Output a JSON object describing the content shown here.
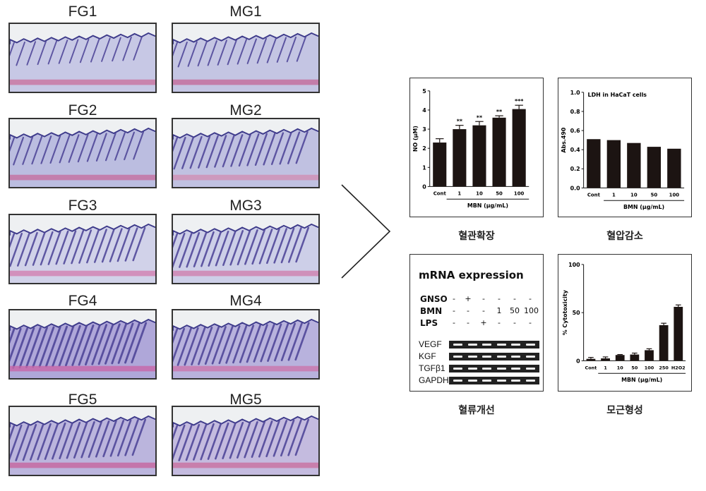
{
  "histology": {
    "panels": [
      {
        "label": "FG1",
        "col": 0,
        "row": 0,
        "density": 0.35,
        "color": "#b9bbe0",
        "muscle": "#c9739f"
      },
      {
        "label": "MG1",
        "col": 1,
        "row": 0,
        "density": 0.4,
        "color": "#b5b7de",
        "muscle": "#c46a9a"
      },
      {
        "label": "FG2",
        "col": 0,
        "row": 1,
        "density": 0.5,
        "color": "#a9acd9",
        "muscle": "#c56fa0"
      },
      {
        "label": "MG2",
        "col": 1,
        "row": 1,
        "density": 0.65,
        "color": "#b0b2db",
        "muscle": "#cf8fb4"
      },
      {
        "label": "FG3",
        "col": 0,
        "row": 2,
        "density": 0.7,
        "color": "#c7c8e6",
        "muscle": "#d27fb0"
      },
      {
        "label": "MG3",
        "col": 1,
        "row": 2,
        "density": 0.75,
        "color": "#c2c4e4",
        "muscle": "#cf7fae"
      },
      {
        "label": "FG4",
        "col": 0,
        "row": 3,
        "density": 0.95,
        "color": "#9a8fd0",
        "muscle": "#c866a8"
      },
      {
        "label": "MG4",
        "col": 1,
        "row": 3,
        "density": 0.85,
        "color": "#a69ed6",
        "muscle": "#cb76ac"
      },
      {
        "label": "FG5",
        "col": 0,
        "row": 4,
        "density": 0.8,
        "color": "#a9a1d6",
        "muscle": "#c7659f"
      },
      {
        "label": "MG5",
        "col": 1,
        "row": 4,
        "density": 0.8,
        "color": "#b6a9d8",
        "muscle": "#c9709f"
      }
    ]
  },
  "captions": {
    "no": "혈관확장",
    "ldh": "혈압감소",
    "mrna": "혈류개선",
    "cyto": "모근형성"
  },
  "mrna": {
    "title": "mRNA expression",
    "conditions": [
      {
        "name": "GNSO",
        "values": [
          "-",
          "+",
          "-",
          "-",
          "-",
          "-"
        ]
      },
      {
        "name": "BMN",
        "values": [
          "-",
          "-",
          "-",
          "1",
          "50",
          "100"
        ]
      },
      {
        "name": "LPS",
        "values": [
          "-",
          "-",
          "+",
          "-",
          "-",
          "-"
        ]
      }
    ],
    "genes": [
      "VEGF",
      "KGF",
      "TGFβ1",
      "GAPDH"
    ]
  },
  "chart_data": [
    {
      "id": "no",
      "type": "bar",
      "title": "",
      "ylabel": "NO (μM)",
      "xlabel": "MBN (μg/mL)",
      "categories": [
        "Cont",
        "1",
        "10",
        "50",
        "100"
      ],
      "values": [
        2.3,
        3.0,
        3.2,
        3.6,
        4.05
      ],
      "errors": [
        0.2,
        0.2,
        0.2,
        0.1,
        0.2
      ],
      "significance": [
        "",
        "**",
        "**",
        "**",
        "***"
      ],
      "ylim": [
        0,
        5
      ],
      "ticks": [
        0,
        1,
        2,
        3,
        4,
        5
      ],
      "tick_labels": [
        "0",
        "1",
        "2",
        "3",
        "4",
        "5"
      ]
    },
    {
      "id": "ldh",
      "type": "bar",
      "title": "LDH in HaCaT cells",
      "ylabel": "Abs.490",
      "xlabel": "BMN (μg/mL)",
      "categories": [
        "Cont",
        "1",
        "10",
        "50",
        "100"
      ],
      "values": [
        0.51,
        0.5,
        0.47,
        0.43,
        0.41
      ],
      "ylim": [
        0,
        1.0
      ],
      "ticks": [
        0,
        0.2,
        0.4,
        0.6,
        0.8,
        1.0
      ],
      "tick_labels": [
        "0.0",
        "0.2",
        "0.4",
        "0.6",
        "0.8",
        "1.0"
      ]
    },
    {
      "id": "cyto",
      "type": "bar",
      "title": "",
      "ylabel": "% Cytotoxicity",
      "xlabel": "MBN (μg/mL)",
      "categories": [
        "Cont",
        "1",
        "10",
        "50",
        "100",
        "250",
        "H2O2"
      ],
      "values": [
        2,
        2.5,
        6,
        6.5,
        11,
        37,
        56
      ],
      "errors": [
        1.5,
        1.5,
        0.5,
        1.5,
        1.5,
        2,
        2
      ],
      "ylim": [
        0,
        100
      ],
      "ticks": [
        0,
        50,
        100
      ],
      "tick_labels": [
        "0",
        "50",
        "100"
      ]
    }
  ]
}
